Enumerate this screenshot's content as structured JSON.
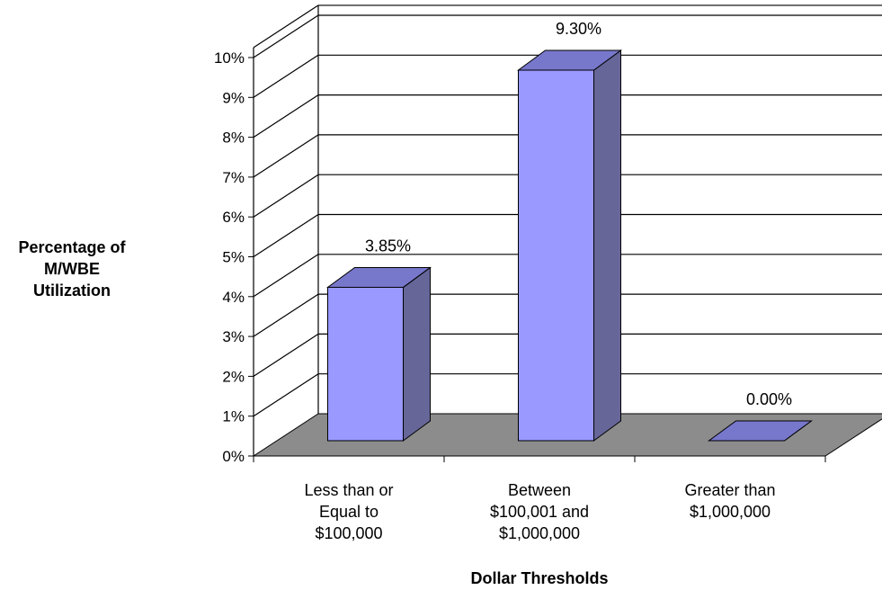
{
  "chart_data": {
    "type": "bar",
    "categories": [
      "Less than or\nEqual to\n$100,000",
      "Between\n$100,001 and\n$1,000,000",
      "Greater than\n$1,000,000"
    ],
    "values": [
      3.85,
      9.3,
      0.0
    ],
    "data_labels": [
      "3.85%",
      "9.30%",
      "0.00%"
    ],
    "xlabel": "Dollar Thresholds",
    "ylabel": "Percentage of\nM/WBE\nUtilization",
    "ylim": [
      0,
      10
    ],
    "yticks": [
      "0%",
      "1%",
      "2%",
      "3%",
      "4%",
      "5%",
      "6%",
      "7%",
      "8%",
      "9%",
      "10%"
    ],
    "grid": true,
    "legend": "none",
    "style": "3d"
  },
  "colors": {
    "bar_front": "#9999ff",
    "bar_side": "#666699",
    "bar_top": "#7777cc",
    "floor": "#8c8c8c",
    "grid": "#000000"
  }
}
